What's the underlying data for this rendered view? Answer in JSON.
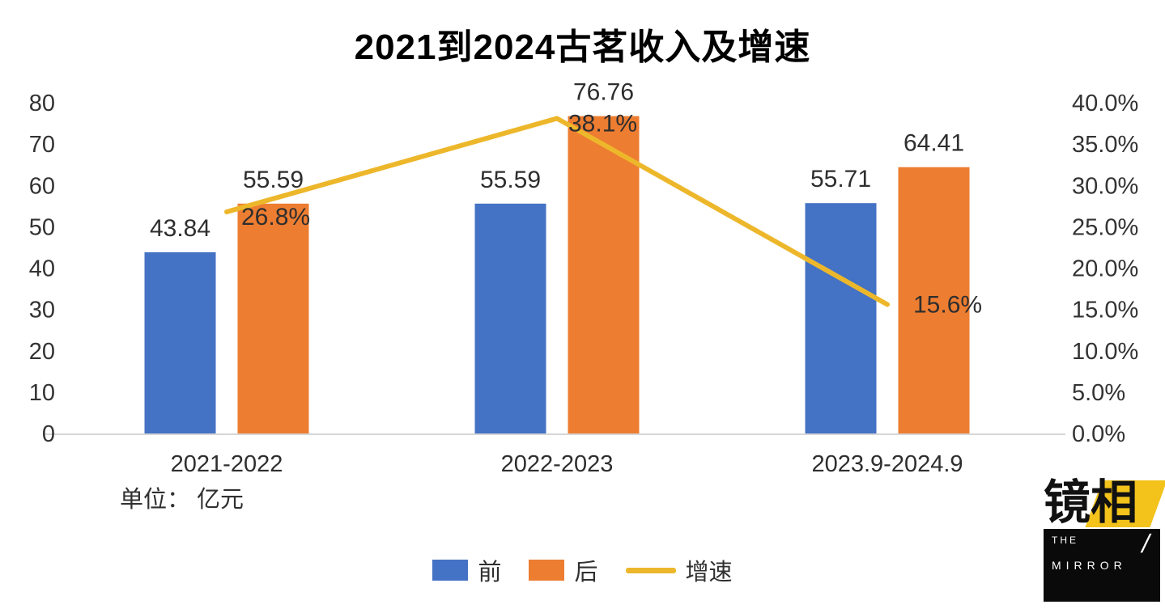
{
  "chart_data": {
    "type": "bar-line-combo",
    "title": "2021到2024古茗收入及增速",
    "unit_note": "单位： 亿元",
    "categories": [
      "2021-2022",
      "2022-2023",
      "2023.9-2024.9"
    ],
    "series": [
      {
        "name": "前",
        "type": "bar",
        "axis": "left",
        "color": "#4472C4",
        "values": [
          43.84,
          55.59,
          55.71
        ],
        "labels": [
          "43.84",
          "55.59",
          "55.71"
        ]
      },
      {
        "name": "后",
        "type": "bar",
        "axis": "left",
        "color": "#ED7D31",
        "values": [
          55.59,
          76.76,
          64.41
        ],
        "labels": [
          "55.59",
          "76.76",
          "64.41"
        ]
      },
      {
        "name": "增速",
        "type": "line",
        "axis": "right",
        "color": "#EDB72B",
        "values": [
          26.8,
          38.1,
          15.6
        ],
        "labels": [
          "26.8%",
          "38.1%",
          "15.6%"
        ]
      }
    ],
    "left_axis": {
      "min": 0,
      "max": 80,
      "step": 10,
      "ticks": [
        "0",
        "10",
        "20",
        "30",
        "40",
        "50",
        "60",
        "70",
        "80"
      ]
    },
    "right_axis": {
      "min": 0,
      "max": 40,
      "step": 5,
      "ticks": [
        "0.0%",
        "5.0%",
        "10.0%",
        "15.0%",
        "20.0%",
        "25.0%",
        "30.0%",
        "35.0%",
        "40.0%"
      ]
    },
    "legend": {
      "position": "bottom-center",
      "items": [
        {
          "label": "前",
          "color": "#4472C4",
          "marker": "rect"
        },
        {
          "label": "后",
          "color": "#ED7D31",
          "marker": "rect"
        },
        {
          "label": "增速",
          "color": "#EDB72B",
          "marker": "line"
        }
      ]
    },
    "grid": false
  },
  "logo": {
    "char_1": "镜",
    "char_2": "相",
    "word_1": "THE",
    "slash": "/",
    "word_2": "MIRROR",
    "accent_color": "#F3C21B",
    "bg_color": "#0A0A0A",
    "text_color": "#FFFFFF"
  }
}
